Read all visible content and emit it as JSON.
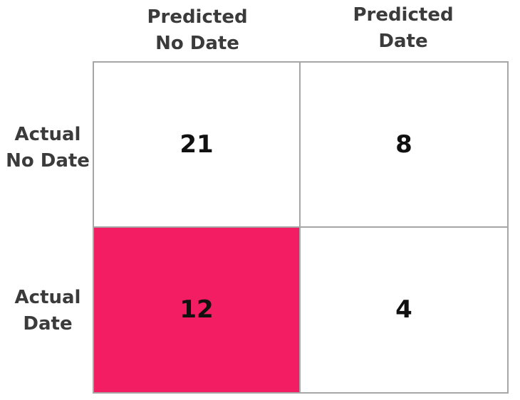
{
  "columns": [
    {
      "line1": "Predicted",
      "line2": "No Date"
    },
    {
      "line1": "Predicted",
      "line2": "Date"
    }
  ],
  "rows": [
    {
      "line1": "Actual",
      "line2": "No Date"
    },
    {
      "line1": "Actual",
      "line2": "Date"
    }
  ],
  "cells": [
    [
      "21",
      "8"
    ],
    [
      "12",
      "4"
    ]
  ],
  "highlight": {
    "row": 1,
    "col": 0,
    "color": "#f21d62"
  },
  "colors": {
    "grid_line": "#a6a6a6",
    "label_text": "#3b3b3b",
    "value_text": "#111111"
  }
}
